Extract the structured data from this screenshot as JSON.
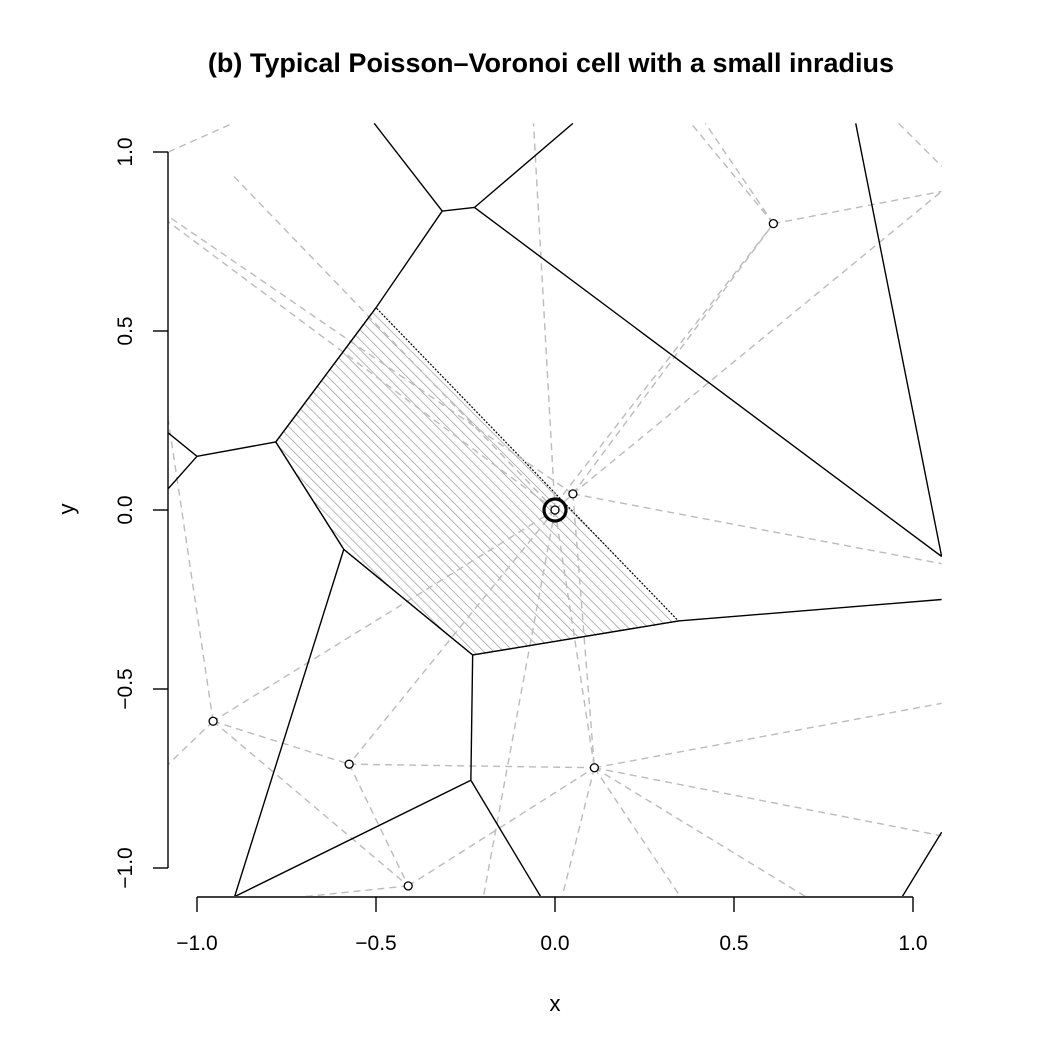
{
  "chart_data": {
    "type": "scatter",
    "title": "(b) Typical Poisson–Voronoi cell with a small inradius",
    "xlabel": "x",
    "ylabel": "y",
    "xlim": [
      -1.08,
      1.08
    ],
    "ylim": [
      -1.08,
      1.08
    ],
    "xticks": [
      -1.0,
      -0.5,
      0.0,
      0.5,
      1.0
    ],
    "xtick_labels": [
      "−1.0",
      "−0.5",
      "0.0",
      "0.5",
      "1.0"
    ],
    "yticks": [
      -1.0,
      -0.5,
      0.0,
      0.5,
      1.0
    ],
    "ytick_labels": [
      "−1.0",
      "−0.5",
      "0.0",
      "0.5",
      "1.0"
    ],
    "grid": false,
    "colors": {
      "edges": "#000000",
      "delaunay": "#bbbbbb",
      "hatch": "#999999"
    },
    "points": [
      {
        "x": 0.0,
        "y": 0.0
      },
      {
        "x": 0.05,
        "y": 0.045
      },
      {
        "x": 0.61,
        "y": 0.8
      },
      {
        "x": -0.955,
        "y": -0.59
      },
      {
        "x": -0.575,
        "y": -0.71
      },
      {
        "x": 0.11,
        "y": -0.72
      },
      {
        "x": -0.41,
        "y": -1.05
      }
    ],
    "center_marker": {
      "x": 0.0,
      "y": 0.0
    },
    "typical_cell": [
      [
        -0.5,
        0.565
      ],
      [
        -0.78,
        0.19
      ],
      [
        -0.59,
        -0.11
      ],
      [
        -0.23,
        -0.405
      ],
      [
        0.345,
        -0.31
      ]
    ],
    "voronoi_edges": [
      [
        [
          -0.5,
          0.565
        ],
        [
          -0.78,
          0.19
        ]
      ],
      [
        [
          -0.78,
          0.19
        ],
        [
          -0.59,
          -0.11
        ]
      ],
      [
        [
          -0.59,
          -0.11
        ],
        [
          -0.23,
          -0.405
        ]
      ],
      [
        [
          -0.23,
          -0.405
        ],
        [
          0.345,
          -0.31
        ]
      ],
      [
        [
          0.345,
          -0.31
        ],
        [
          1.08,
          -0.25
        ]
      ],
      [
        [
          -0.5,
          0.565
        ],
        [
          -0.315,
          0.835
        ]
      ],
      [
        [
          -0.315,
          0.835
        ],
        [
          -0.225,
          0.845
        ]
      ],
      [
        [
          -0.225,
          0.845
        ],
        [
          0.05,
          1.08
        ]
      ],
      [
        [
          -0.315,
          0.835
        ],
        [
          -0.505,
          1.08
        ]
      ],
      [
        [
          -0.225,
          0.845
        ],
        [
          1.08,
          -0.13
        ]
      ],
      [
        [
          0.84,
          1.08
        ],
        [
          1.08,
          -0.13
        ]
      ],
      [
        [
          -0.78,
          0.19
        ],
        [
          -1.0,
          0.15
        ]
      ],
      [
        [
          -1.0,
          0.15
        ],
        [
          -1.08,
          0.215
        ]
      ],
      [
        [
          -1.0,
          0.15
        ],
        [
          -1.08,
          0.06
        ]
      ],
      [
        [
          -0.59,
          -0.11
        ],
        [
          -0.895,
          -1.08
        ]
      ],
      [
        [
          -0.23,
          -0.405
        ],
        [
          -0.235,
          -0.755
        ]
      ],
      [
        [
          -0.235,
          -0.755
        ],
        [
          -0.895,
          -1.08
        ]
      ],
      [
        [
          -0.235,
          -0.755
        ],
        [
          -0.04,
          -1.08
        ]
      ],
      [
        [
          0.97,
          -1.08
        ],
        [
          1.08,
          -0.9
        ]
      ]
    ],
    "delaunay_edges": [
      [
        [
          0.0,
          0.0
        ],
        [
          0.05,
          0.045
        ]
      ],
      [
        [
          0.0,
          0.0
        ],
        [
          -1.08,
          0.805
        ]
      ],
      [
        [
          0.0,
          0.0
        ],
        [
          -0.9,
          0.935
        ]
      ],
      [
        [
          0.05,
          0.045
        ],
        [
          -1.08,
          0.82
        ]
      ],
      [
        [
          0.0,
          0.0
        ],
        [
          -0.955,
          -0.59
        ]
      ],
      [
        [
          0.0,
          0.0
        ],
        [
          -0.575,
          -0.71
        ]
      ],
      [
        [
          0.0,
          0.0
        ],
        [
          0.11,
          -0.72
        ]
      ],
      [
        [
          0.0,
          0.0
        ],
        [
          -0.06,
          1.08
        ]
      ],
      [
        [
          0.0,
          0.0
        ],
        [
          -0.2,
          -1.08
        ]
      ],
      [
        [
          0.05,
          0.045
        ],
        [
          0.61,
          0.8
        ]
      ],
      [
        [
          0.05,
          0.045
        ],
        [
          1.08,
          0.89
        ]
      ],
      [
        [
          0.05,
          0.045
        ],
        [
          1.08,
          -0.15
        ]
      ],
      [
        [
          0.05,
          0.045
        ],
        [
          0.11,
          -0.72
        ]
      ],
      [
        [
          0.61,
          0.8
        ],
        [
          1.08,
          0.89
        ]
      ],
      [
        [
          0.61,
          0.8
        ],
        [
          0.38,
          1.08
        ]
      ],
      [
        [
          0.61,
          0.8
        ],
        [
          0.42,
          1.08
        ]
      ],
      [
        [
          0.61,
          0.8
        ],
        [
          0.02,
          0.04
        ]
      ],
      [
        [
          -0.955,
          -0.59
        ],
        [
          -1.08,
          -0.71
        ]
      ],
      [
        [
          -0.955,
          -0.59
        ],
        [
          -1.08,
          0.25
        ]
      ],
      [
        [
          -0.955,
          -0.59
        ],
        [
          -0.575,
          -0.71
        ]
      ],
      [
        [
          -0.955,
          -0.59
        ],
        [
          -0.41,
          -1.05
        ]
      ],
      [
        [
          -0.575,
          -0.71
        ],
        [
          0.11,
          -0.72
        ]
      ],
      [
        [
          -0.575,
          -0.71
        ],
        [
          -0.41,
          -1.05
        ]
      ],
      [
        [
          -0.41,
          -1.05
        ],
        [
          0.11,
          -0.72
        ]
      ],
      [
        [
          -0.41,
          -1.05
        ],
        [
          -0.7,
          -1.08
        ]
      ],
      [
        [
          0.11,
          -0.72
        ],
        [
          1.08,
          -0.54
        ]
      ],
      [
        [
          0.11,
          -0.72
        ],
        [
          1.08,
          -0.91
        ]
      ],
      [
        [
          0.11,
          -0.72
        ],
        [
          0.35,
          -1.08
        ]
      ],
      [
        [
          0.11,
          -0.72
        ],
        [
          0.7,
          -1.08
        ]
      ],
      [
        [
          0.11,
          -0.72
        ],
        [
          0.02,
          -1.08
        ]
      ],
      [
        [
          -1.08,
          1.0
        ],
        [
          -0.9,
          1.08
        ]
      ],
      [
        [
          0.96,
          1.08
        ],
        [
          1.08,
          0.96
        ]
      ]
    ]
  }
}
